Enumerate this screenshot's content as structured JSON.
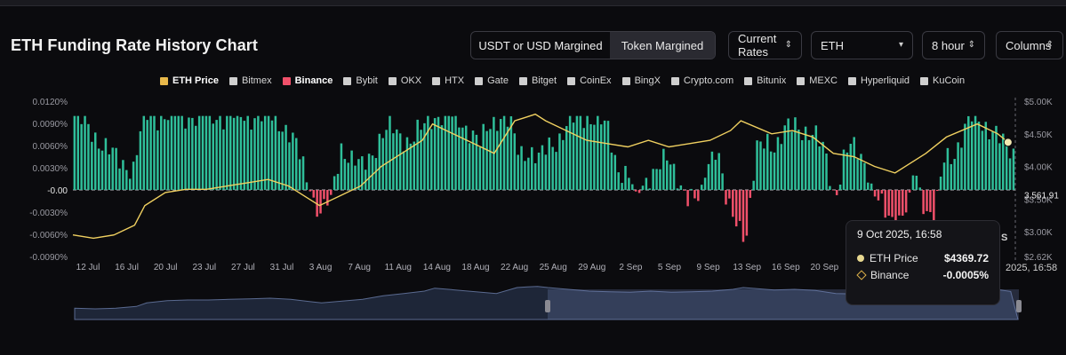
{
  "page": {
    "title": "ETH Funding Rate History Chart"
  },
  "controls": {
    "margin_tabs": [
      {
        "label": "USDT or USD Margined",
        "active": true
      },
      {
        "label": "Token Margined",
        "active": false
      }
    ],
    "rate_select": "Current Rates",
    "symbol_select": "ETH",
    "interval_select": "8 hour",
    "view_select": "Columns"
  },
  "legend": [
    {
      "name": "ETH Price",
      "color": "#e8b84a",
      "active": true
    },
    {
      "name": "Bitmex",
      "color": "#cfcfcf",
      "active": false
    },
    {
      "name": "Binance",
      "color": "#f0506a",
      "active": true
    },
    {
      "name": "Bybit",
      "color": "#cfcfcf",
      "active": false
    },
    {
      "name": "OKX",
      "color": "#cfcfcf",
      "active": false
    },
    {
      "name": "HTX",
      "color": "#cfcfcf",
      "active": false
    },
    {
      "name": "Gate",
      "color": "#cfcfcf",
      "active": false
    },
    {
      "name": "Bitget",
      "color": "#cfcfcf",
      "active": false
    },
    {
      "name": "CoinEx",
      "color": "#cfcfcf",
      "active": false
    },
    {
      "name": "BingX",
      "color": "#cfcfcf",
      "active": false
    },
    {
      "name": "Crypto.com",
      "color": "#cfcfcf",
      "active": false
    },
    {
      "name": "Bitunix",
      "color": "#cfcfcf",
      "active": false
    },
    {
      "name": "MEXC",
      "color": "#cfcfcf",
      "active": false
    },
    {
      "name": "Hyperliquid",
      "color": "#cfcfcf",
      "active": false
    },
    {
      "name": "KuCoin",
      "color": "#cfcfcf",
      "active": false
    }
  ],
  "tooltip": {
    "date": "9 Oct 2025, 16:58",
    "rows": [
      {
        "label": "ETH Price",
        "value": "$4369.72"
      },
      {
        "label": "Binance",
        "value": "-0.0005%"
      }
    ],
    "side_letter": "S",
    "side_date": "2025, 16:58"
  },
  "chart_data": {
    "type": "bar",
    "title": "",
    "xlabel": "",
    "ylabel": "",
    "x_tick_labels": [
      "12 Jul",
      "16 Jul",
      "20 Jul",
      "23 Jul",
      "27 Jul",
      "31 Jul",
      "3 Aug",
      "7 Aug",
      "11 Aug",
      "14 Aug",
      "18 Aug",
      "22 Aug",
      "25 Aug",
      "29 Aug",
      "2 Sep",
      "5 Sep",
      "9 Sep",
      "13 Sep",
      "16 Sep",
      "20 Sep"
    ],
    "y_left_tick_labels": [
      "0.0120%",
      "0.0090%",
      "0.0060%",
      "0.0030%",
      "0.00",
      "-0.0030%",
      "-0.0060%",
      "-0.0090%"
    ],
    "y_left_ticks": [
      0.012,
      0.009,
      0.006,
      0.003,
      0,
      -0.003,
      -0.006,
      -0.009
    ],
    "ylim_left": [
      -0.009,
      0.012
    ],
    "y_right_tick_labels": [
      "$5.00K",
      "$4.50K",
      "$4.00K",
      "$3.50K",
      "$3.00K",
      "$2.62K"
    ],
    "y_right_ticks": [
      5000,
      4500,
      4000,
      3500,
      3000,
      2620
    ],
    "ylim_right": [
      2620,
      5000
    ],
    "current_price_label": "3,561.91",
    "current_price": 3561.91,
    "zero_label": "-0.00",
    "x_range": [
      "2025-07-10T00:00",
      "2025-10-09T16:58"
    ],
    "bar_count": 272,
    "series": [
      {
        "name": "Binance",
        "kind": "bar",
        "positive_color": "#2fbf9a",
        "negative_color": "#f0506a",
        "anchor_values": [
          0.01,
          0.009,
          0.0075,
          0.006,
          0.0045,
          0.0035,
          0.003,
          0.01,
          0.01,
          0.01,
          0.01,
          0.01,
          0.01,
          0.01,
          0.01,
          0.01,
          0.01,
          0.01,
          0.01,
          0.01,
          0.01,
          0.009,
          0.007,
          0.004,
          -0.001,
          -0.0035,
          -0.0005,
          0.006,
          0.004,
          0.003,
          0.005,
          0.007,
          0.0085,
          0.0075,
          0.0065,
          0.008,
          0.01,
          0.01,
          0.01,
          0.0095,
          0.008,
          0.006,
          0.009,
          0.01,
          0.009,
          0.005,
          0.0055,
          0.004,
          0.006,
          0.007,
          0.009,
          0.01,
          0.01,
          0.0095,
          0.008,
          0.003,
          0.002,
          -0.0008,
          0.002,
          0.003,
          0.004,
          0.002,
          -0.001,
          -0.002,
          0.004,
          0.006,
          -0.0025,
          -0.004,
          -0.006,
          0.005,
          0.007,
          0.006,
          0.008,
          0.009,
          0.008,
          0.007,
          0.005,
          -0.0015,
          0.005,
          0.006,
          0.004,
          -0.001,
          -0.003,
          -0.004,
          -0.0035,
          0.003,
          -0.002,
          -0.004,
          0.004,
          0.005,
          0.008,
          0.01,
          0.009,
          0.008,
          0.006,
          0.005
        ],
        "anchor_count": 96
      },
      {
        "name": "ETH Price",
        "kind": "line",
        "color": "#f0d060",
        "x": [
          "2025-07-10",
          "2025-07-12",
          "2025-07-14",
          "2025-07-16",
          "2025-07-17",
          "2025-07-19",
          "2025-07-21",
          "2025-07-23",
          "2025-07-25",
          "2025-07-27",
          "2025-07-29",
          "2025-07-31",
          "2025-08-02",
          "2025-08-03",
          "2025-08-05",
          "2025-08-07",
          "2025-08-09",
          "2025-08-11",
          "2025-08-13",
          "2025-08-14",
          "2025-08-16",
          "2025-08-18",
          "2025-08-20",
          "2025-08-22",
          "2025-08-23",
          "2025-08-24",
          "2025-08-25",
          "2025-08-27",
          "2025-08-29",
          "2025-08-31",
          "2025-09-02",
          "2025-09-04",
          "2025-09-06",
          "2025-09-08",
          "2025-09-10",
          "2025-09-12",
          "2025-09-13",
          "2025-09-16",
          "2025-09-18",
          "2025-09-20",
          "2025-09-22",
          "2025-09-24",
          "2025-09-26",
          "2025-09-28",
          "2025-10-01",
          "2025-10-03",
          "2025-10-06",
          "2025-10-08",
          "2025-10-09"
        ],
        "y": [
          2950,
          2900,
          2950,
          3100,
          3400,
          3600,
          3650,
          3650,
          3700,
          3750,
          3800,
          3700,
          3500,
          3400,
          3550,
          3700,
          4000,
          4200,
          4400,
          4650,
          4500,
          4350,
          4200,
          4700,
          4750,
          4800,
          4700,
          4550,
          4400,
          4350,
          4300,
          4400,
          4300,
          4350,
          4400,
          4550,
          4700,
          4500,
          4550,
          4450,
          4200,
          4150,
          4000,
          3900,
          4200,
          4450,
          4650,
          4500,
          4369.72
        ]
      }
    ]
  }
}
